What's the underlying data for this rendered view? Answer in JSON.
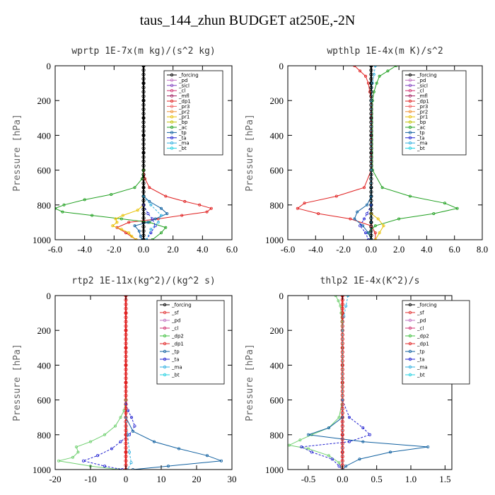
{
  "figure_title": "taus_144_zhun  BUDGET at250E,-2N",
  "chart_data": [
    {
      "type": "line",
      "title": "wprtp  1E-7x(m kg)/(s^2 kg)",
      "ylabel": "Pressure [hPa]",
      "xlim": [
        -6,
        6
      ],
      "ylim": [
        0,
        1000
      ],
      "y_inverted": true,
      "xticks": [
        "-6.0",
        "-4.0",
        "-2.0",
        "0.0",
        "2.0",
        "4.0",
        "6.0"
      ],
      "yticks": [
        "0",
        "200",
        "400",
        "600",
        "800",
        "1000"
      ],
      "legend": [
        "_forcing",
        "_pd",
        "_sicl",
        "_cl",
        "_mfl",
        "_dp1",
        "_pr3",
        "_pr2",
        "_pr1",
        "_bp",
        "_ac",
        "_tp",
        "_ta",
        "_ma",
        "_bt"
      ],
      "series": [
        {
          "name": "_forcing",
          "color": "#000000",
          "p": [
            0,
            100,
            200,
            300,
            400,
            500,
            600,
            700,
            800,
            900,
            1000
          ],
          "x": [
            0,
            0,
            0,
            0,
            0,
            0,
            0,
            0,
            0,
            0,
            0
          ]
        },
        {
          "name": "_dp1",
          "color": "#e02020",
          "p": [
            600,
            650,
            700,
            750,
            780,
            800,
            820,
            840,
            860,
            880,
            900,
            930,
            960,
            1000
          ],
          "x": [
            0,
            0.1,
            0.4,
            1.5,
            2.8,
            3.8,
            4.6,
            4.3,
            2.6,
            1.0,
            -1.0,
            -1.8,
            -1.2,
            -0.5
          ]
        },
        {
          "name": "_ac",
          "color": "#20a020",
          "p": [
            600,
            650,
            700,
            740,
            770,
            800,
            820,
            840,
            860,
            880,
            900,
            930,
            960,
            1000
          ],
          "x": [
            0,
            -0.1,
            -0.6,
            -2.2,
            -4.0,
            -5.4,
            -6.0,
            -5.5,
            -3.5,
            -1.5,
            0.4,
            1.5,
            1.2,
            0.6
          ]
        },
        {
          "name": "_pr1",
          "color": "#e8c000",
          "p": [
            800,
            830,
            860,
            880,
            900,
            920,
            940,
            960,
            980,
            1000
          ],
          "x": [
            0,
            -0.4,
            -1.4,
            -1.9,
            -1.8,
            -2.1,
            -1.5,
            -1.0,
            -0.8,
            -0.5
          ]
        },
        {
          "name": "_tp",
          "color": "#1060a0",
          "p": [
            750,
            780,
            820,
            850,
            880,
            900,
            920,
            950,
            980,
            1000
          ],
          "x": [
            0,
            0.4,
            1.2,
            1.6,
            0.8,
            0.3,
            -0.6,
            -0.3,
            -0.2,
            -0.1
          ]
        },
        {
          "name": "_ta",
          "color": "#2020d0",
          "p": [
            800,
            850,
            880,
            920,
            960,
            1000
          ],
          "x": [
            0,
            0.3,
            0.6,
            0.8,
            0.5,
            0.2
          ]
        },
        {
          "name": "_ma",
          "color": "#30b0e0",
          "p": [
            750,
            800,
            860,
            900,
            940,
            1000
          ],
          "x": [
            0,
            0.5,
            1.2,
            1.0,
            0.5,
            0.2
          ]
        }
      ]
    },
    {
      "type": "line",
      "title": "wpthlp  1E-4x(m K)/s^2",
      "ylabel": "Pressure [hPa]",
      "xlim": [
        -6,
        8
      ],
      "ylim": [
        0,
        1000
      ],
      "y_inverted": true,
      "xticks": [
        "-6.0",
        "-4.0",
        "-2.0",
        "0.0",
        "2.0",
        "4.0",
        "6.0",
        "8.0"
      ],
      "yticks": [
        "0",
        "200",
        "400",
        "600",
        "800",
        "1000"
      ],
      "legend": [
        "_forcing",
        "_pd",
        "_sicl",
        "_cl",
        "_mfl",
        "_dp1",
        "_pr3",
        "_pr2",
        "_pr1",
        "_bp",
        "_ac",
        "_tp",
        "_ta",
        "_ma",
        "_bt"
      ],
      "series": [
        {
          "name": "_forcing",
          "color": "#000000",
          "p": [
            0,
            100,
            200,
            300,
            400,
            500,
            600,
            700,
            800,
            900,
            1000
          ],
          "x": [
            0,
            0,
            0,
            0,
            0,
            0,
            0,
            0,
            0,
            0,
            0
          ]
        },
        {
          "name": "_dp1",
          "color": "#e02020",
          "p": [
            0,
            30,
            60,
            100,
            150,
            200,
            600,
            700,
            750,
            790,
            820,
            850,
            880,
            920,
            960,
            1000
          ],
          "x": [
            -1.2,
            -0.8,
            -0.4,
            -0.2,
            -0.1,
            0,
            0,
            -0.5,
            -2.5,
            -4.8,
            -5.3,
            -3.8,
            -1.5,
            0,
            0.3,
            0.3
          ]
        },
        {
          "name": "_ac",
          "color": "#20a020",
          "p": [
            0,
            30,
            60,
            100,
            150,
            200,
            600,
            700,
            750,
            790,
            820,
            850,
            880,
            920,
            960,
            1000
          ],
          "x": [
            1.8,
            1.2,
            0.6,
            0.4,
            0.2,
            0.1,
            0.1,
            0.8,
            2.8,
            5.3,
            6.2,
            4.5,
            2.0,
            0.3,
            -0.2,
            0
          ]
        },
        {
          "name": "_tp",
          "color": "#1060a0",
          "p": [
            750,
            800,
            840,
            880,
            920,
            960,
            1000
          ],
          "x": [
            0,
            -0.3,
            -1.0,
            -1.2,
            -0.6,
            -0.2,
            0
          ]
        },
        {
          "name": "_ta",
          "color": "#2020d0",
          "p": [
            800,
            850,
            880,
            920,
            960,
            1000
          ],
          "x": [
            0,
            -0.3,
            -0.5,
            -0.8,
            -0.4,
            -0.2
          ]
        },
        {
          "name": "_pr1",
          "color": "#e8c000",
          "p": [
            850,
            880,
            920,
            960,
            1000
          ],
          "x": [
            0,
            0.5,
            0.9,
            0.6,
            0.3
          ]
        },
        {
          "name": "_ma",
          "color": "#30b0e0",
          "p": [
            0,
            50,
            100,
            200,
            600,
            1000
          ],
          "x": [
            0.3,
            0.2,
            0.1,
            0,
            0,
            0
          ]
        }
      ]
    },
    {
      "type": "line",
      "title": "rtp2  1E-11x(kg^2)/(kg^2 s)",
      "ylabel": "Pressure [hPa]",
      "xlim": [
        -20,
        30
      ],
      "ylim": [
        0,
        1000
      ],
      "y_inverted": true,
      "xticks": [
        "-20",
        "-10",
        "0",
        "10",
        "20",
        "30"
      ],
      "yticks": [
        "0",
        "200",
        "400",
        "600",
        "800",
        "1000"
      ],
      "legend": [
        "_forcing",
        "_sf",
        "_pd",
        "_cl",
        "_dp2",
        "_dp1",
        "_tp",
        "_ta",
        "_ma",
        "_bt"
      ],
      "series": [
        {
          "name": "_forcing",
          "color": "#e02020",
          "p": [
            0,
            100,
            200,
            300,
            400,
            500,
            600,
            700,
            800,
            900,
            1000
          ],
          "x": [
            0,
            0,
            0,
            0,
            0,
            0,
            0,
            0,
            0,
            0,
            0
          ]
        },
        {
          "name": "_dp1",
          "color": "#70d070",
          "p": [
            600,
            660,
            700,
            750,
            800,
            840,
            870,
            900,
            930,
            950,
            980,
            1000
          ],
          "x": [
            0,
            -0.5,
            -1.5,
            -3.0,
            -6.0,
            -10.0,
            -14.0,
            -13.5,
            -15.0,
            -19.0,
            -10.0,
            -2.0
          ]
        },
        {
          "name": "_ta",
          "color": "#2020d0",
          "p": [
            620,
            660,
            700,
            750,
            800,
            840,
            880,
            920,
            950,
            980,
            1000
          ],
          "x": [
            0,
            0.6,
            1.6,
            2.5,
            1.0,
            -1.5,
            -4.0,
            -8.0,
            -12.0,
            -6.0,
            -1.0
          ]
        },
        {
          "name": "_tp",
          "color": "#1060a0",
          "p": [
            700,
            780,
            840,
            880,
            920,
            950,
            980,
            1000
          ],
          "x": [
            0,
            2.0,
            8.0,
            15.0,
            23.0,
            27.0,
            12.0,
            2.0
          ]
        },
        {
          "name": "_ma",
          "color": "#30b0e0",
          "p": [
            700,
            800,
            900,
            960,
            1000
          ],
          "x": [
            0,
            0.5,
            1.0,
            1.5,
            0.5
          ]
        }
      ]
    },
    {
      "type": "line",
      "title": "thlp2  1E-4x(K^2)/s",
      "ylabel": "Pressure [hPa]",
      "xlim": [
        -0.8,
        1.6
      ],
      "ylim": [
        0,
        1000
      ],
      "y_inverted": true,
      "xticks": [
        "-0.5",
        "0.0",
        "0.5",
        "1.0",
        "1.5"
      ],
      "xtick_values": [
        -0.5,
        0,
        0.5,
        1.0,
        1.5
      ],
      "yticks": [
        "0",
        "200",
        "400",
        "600",
        "800",
        "1000"
      ],
      "legend": [
        "_forcing",
        "_sf",
        "_pd",
        "_cl",
        "_dp2",
        "_dp1",
        "_tp",
        "_ta",
        "_ma",
        "_bt"
      ],
      "series": [
        {
          "name": "_forcing",
          "color": "#e02020",
          "p": [
            0,
            100,
            200,
            300,
            400,
            500,
            600,
            700,
            800,
            900,
            1000
          ],
          "x": [
            0,
            0,
            0,
            0,
            0,
            0,
            0,
            0,
            0,
            0,
            0
          ]
        },
        {
          "name": "_dp1",
          "color": "#70d070",
          "p": [
            0,
            30,
            60,
            100,
            150,
            200,
            600,
            700,
            760,
            800,
            830,
            860,
            880,
            920,
            960,
            1000
          ],
          "x": [
            -0.1,
            -0.06,
            -0.03,
            -0.02,
            -0.01,
            0,
            0,
            -0.05,
            -0.2,
            -0.45,
            -0.62,
            -0.78,
            -0.5,
            -0.2,
            -0.05,
            0
          ]
        },
        {
          "name": "_ta",
          "color": "#2020d0",
          "p": [
            600,
            700,
            760,
            800,
            840,
            870,
            900,
            940,
            980,
            1000
          ],
          "x": [
            0,
            0.1,
            0.3,
            0.4,
            0.1,
            -0.6,
            -0.45,
            -0.15,
            -0.05,
            0
          ]
        },
        {
          "name": "_tp",
          "color": "#1060a0",
          "p": [
            700,
            760,
            800,
            840,
            870,
            900,
            940,
            980,
            1000
          ],
          "x": [
            0,
            -0.2,
            -0.5,
            0.3,
            1.25,
            0.7,
            0.25,
            0.05,
            0
          ]
        },
        {
          "name": "_ma",
          "color": "#30b0e0",
          "p": [
            0,
            60,
            120,
            200,
            600,
            1000
          ],
          "x": [
            0.08,
            0.05,
            0.02,
            0,
            0,
            0
          ]
        }
      ]
    }
  ]
}
